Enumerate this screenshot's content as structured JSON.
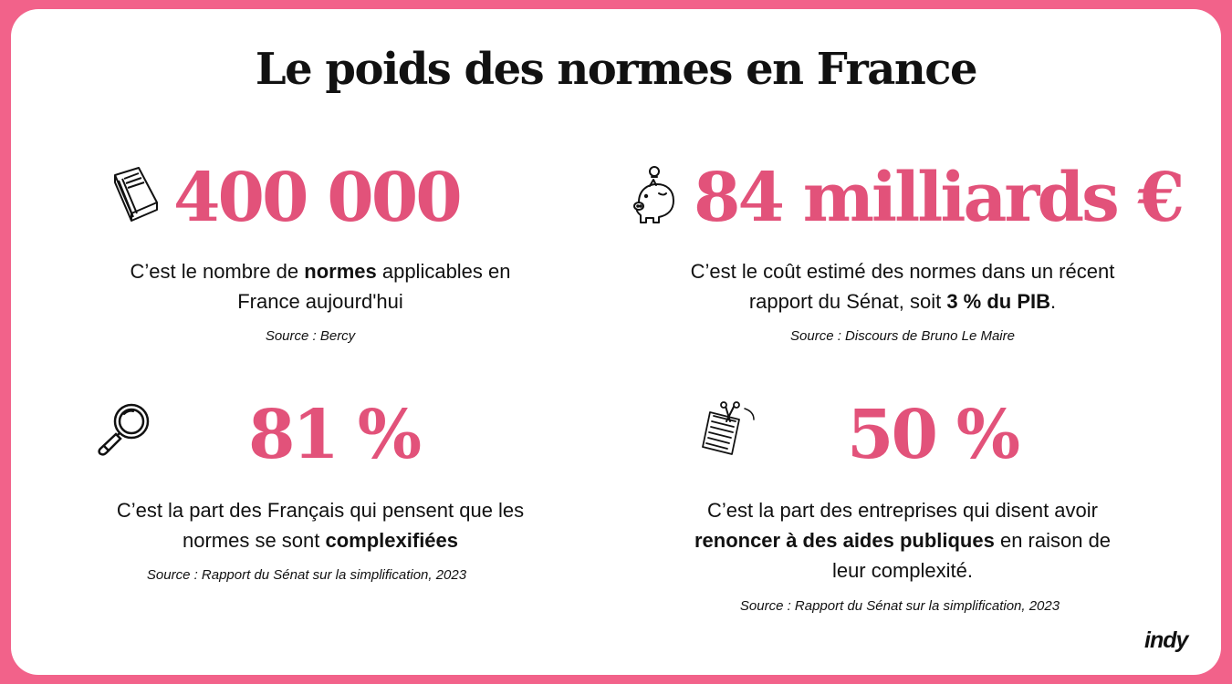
{
  "title": "Le poids des normes en France",
  "accent_color": "#e2527a",
  "border_color": "#f2628a",
  "stats": [
    {
      "icon": "book-icon",
      "value": "400 000",
      "desc_parts": [
        {
          "text": "C’est le nombre de ",
          "bold": false
        },
        {
          "text": "normes",
          "bold": true
        },
        {
          "text": " applicables en France aujourd'hui",
          "bold": false
        }
      ],
      "source": "Source : Bercy"
    },
    {
      "icon": "piggy-bank-icon",
      "value": "84 milliards €",
      "desc_parts": [
        {
          "text": "C’est le coût estimé des normes dans un récent rapport du Sénat, soit ",
          "bold": false
        },
        {
          "text": "3 % du PIB",
          "bold": true
        },
        {
          "text": ".",
          "bold": false
        }
      ],
      "source": "Source : Discours de Bruno Le Maire"
    },
    {
      "icon": "magnifying-glass-icon",
      "value": "81 %",
      "desc_parts": [
        {
          "text": "C’est la part des Français qui pensent que les normes se sont ",
          "bold": false
        },
        {
          "text": "complexifiées",
          "bold": true
        }
      ],
      "source": "Source : Rapport du Sénat sur la simplification, 2023"
    },
    {
      "icon": "documents-scissors-icon",
      "value": "50 %",
      "desc_parts": [
        {
          "text": "C’est la part des entreprises qui disent avoir ",
          "bold": false
        },
        {
          "text": "renoncer à des aides publiques",
          "bold": true
        },
        {
          "text": " en raison de leur complexité.",
          "bold": false
        }
      ],
      "source": "Source : Rapport du Sénat sur la simplification, 2023"
    }
  ],
  "brand": "indy"
}
